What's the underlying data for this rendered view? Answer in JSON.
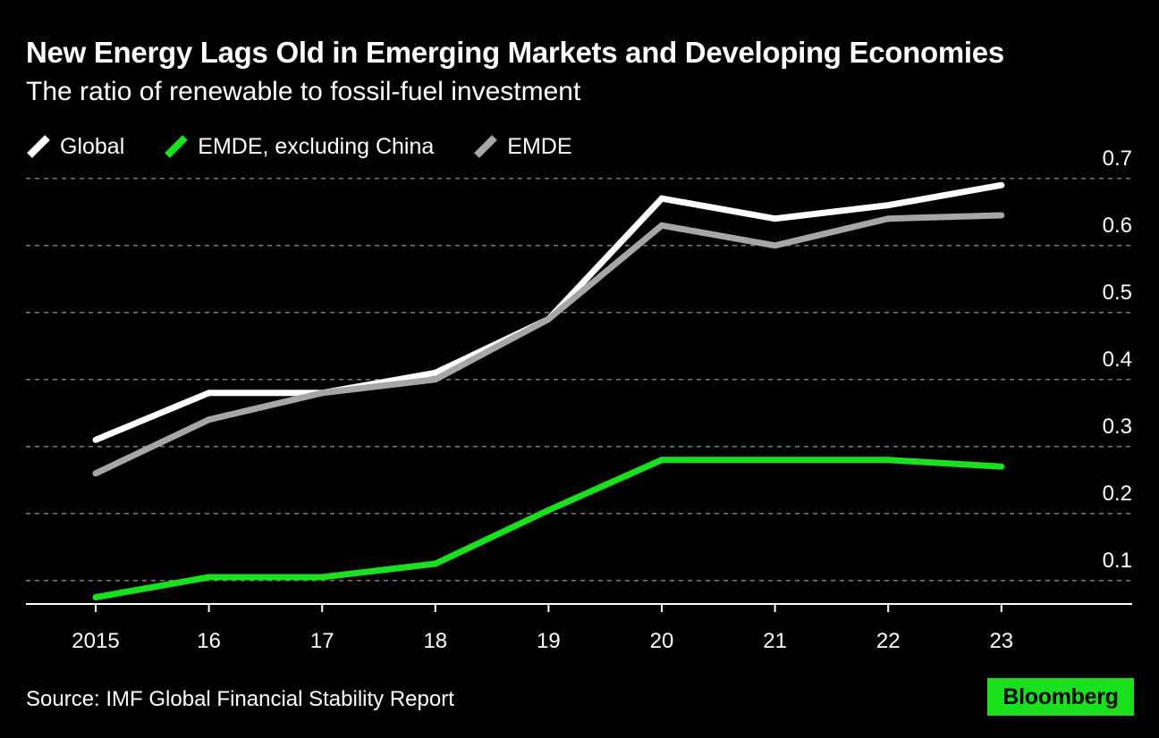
{
  "header": {
    "title": "New Energy Lags Old in Emerging Markets and Developing Economies",
    "subtitle": "The ratio of renewable to fossil-fuel investment"
  },
  "legend": [
    {
      "label": "Global",
      "color": "#ffffff"
    },
    {
      "label": "EMDE, excluding China",
      "color": "#19e11d"
    },
    {
      "label": "EMDE",
      "color": "#a6a6a6"
    }
  ],
  "chart_data": {
    "type": "line",
    "title": "New Energy Lags Old in Emerging Markets and Developing Economies",
    "subtitle": "The ratio of renewable to fossil-fuel investment",
    "categories": [
      "2015",
      "16",
      "17",
      "18",
      "19",
      "20",
      "21",
      "22",
      "23"
    ],
    "y_ticks": [
      "0.1",
      "0.2",
      "0.3",
      "0.4",
      "0.5",
      "0.6",
      "0.7"
    ],
    "ylim": [
      0.065,
      0.705
    ],
    "y_axis_side": "right",
    "grid": "horizontal dashed",
    "legend_position": "top-left",
    "series": [
      {
        "name": "Global",
        "color": "#ffffff",
        "values": [
          0.31,
          0.38,
          0.38,
          0.41,
          0.49,
          0.67,
          0.64,
          0.66,
          0.69
        ]
      },
      {
        "name": "EMDE",
        "color": "#a6a6a6",
        "values": [
          0.26,
          0.34,
          0.38,
          0.4,
          0.49,
          0.63,
          0.6,
          0.64,
          0.645
        ]
      },
      {
        "name": "EMDE, excluding China",
        "color": "#19e11d",
        "values": [
          0.075,
          0.105,
          0.105,
          0.125,
          0.205,
          0.28,
          0.28,
          0.28,
          0.27
        ]
      }
    ]
  },
  "footer": {
    "source": "Source: IMF Global Financial Stability Report",
    "logo": "Bloomberg"
  }
}
